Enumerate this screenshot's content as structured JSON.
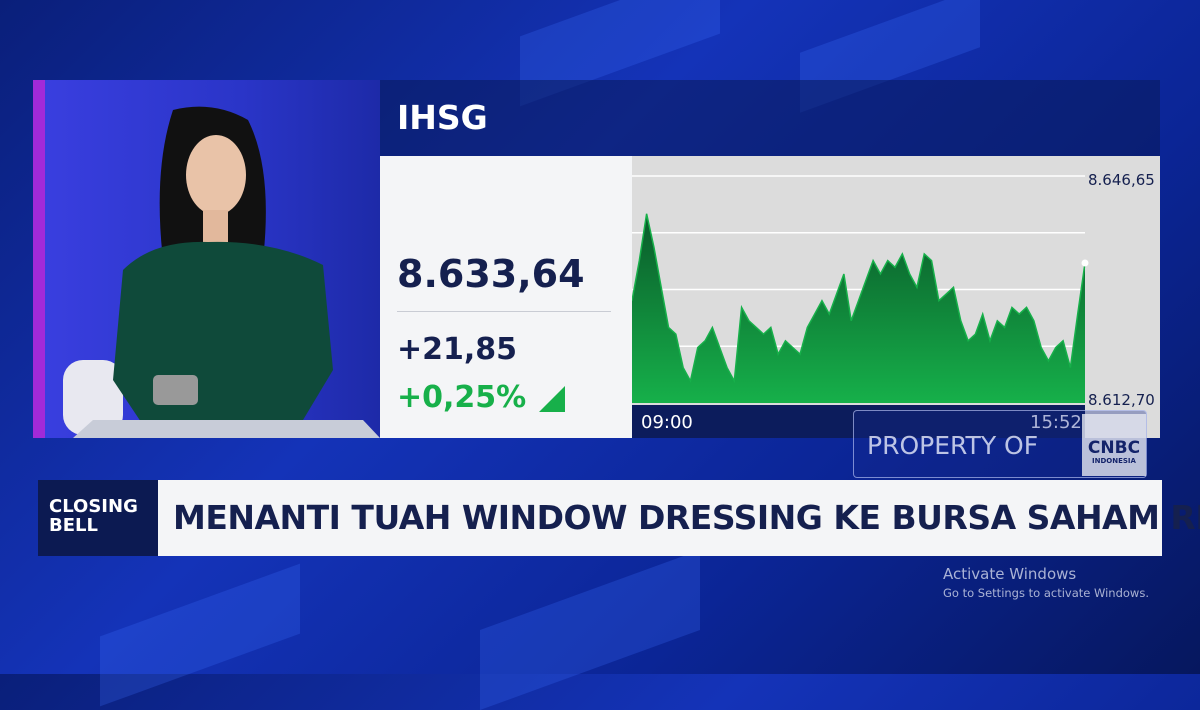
{
  "ticker": {
    "name": "IHSG",
    "price": "8.633,64",
    "change": "+21,85",
    "change_pct": "+0,25%",
    "trend": "up"
  },
  "colors": {
    "accent_green": "#17b04a",
    "navy": "#15204f",
    "background_blue": "#1433b8"
  },
  "chart_data": {
    "type": "area",
    "title": "IHSG",
    "x_start": "09:00",
    "x_end": "15:52",
    "y_top_label": "8.646,65",
    "y_bottom_label": "8.612,70",
    "ylim": [
      8612.7,
      8646.65
    ],
    "grid": true,
    "values": [
      8628,
      8634,
      8641,
      8636,
      8630,
      8624,
      8623,
      8618,
      8616,
      8621,
      8622,
      8624,
      8621,
      8618,
      8616,
      8627,
      8625,
      8624,
      8623,
      8624,
      8620,
      8622,
      8621,
      8620,
      8624,
      8626,
      8628,
      8626,
      8629,
      8632,
      8625,
      8628,
      8631,
      8634,
      8632,
      8634,
      8633,
      8635,
      8632,
      8630,
      8635,
      8634,
      8628,
      8629,
      8630,
      8625,
      8622,
      8623,
      8626,
      8622,
      8625,
      8624,
      8627,
      8626,
      8627,
      8625,
      8621,
      8619,
      8621,
      8622,
      8618,
      8626,
      8633.64
    ]
  },
  "watermark": {
    "text": "PROPERTY OF",
    "logo": "CNBC",
    "logo_sub": "INDONESIA"
  },
  "lower_third": {
    "program": "CLOSING BELL",
    "headline": "MENANTI TUAH WINDOW DRESSING KE BURSA SAHAM RI"
  },
  "os_notice": {
    "title": "Activate Windows",
    "subtitle": "Go to Settings to activate Windows."
  }
}
